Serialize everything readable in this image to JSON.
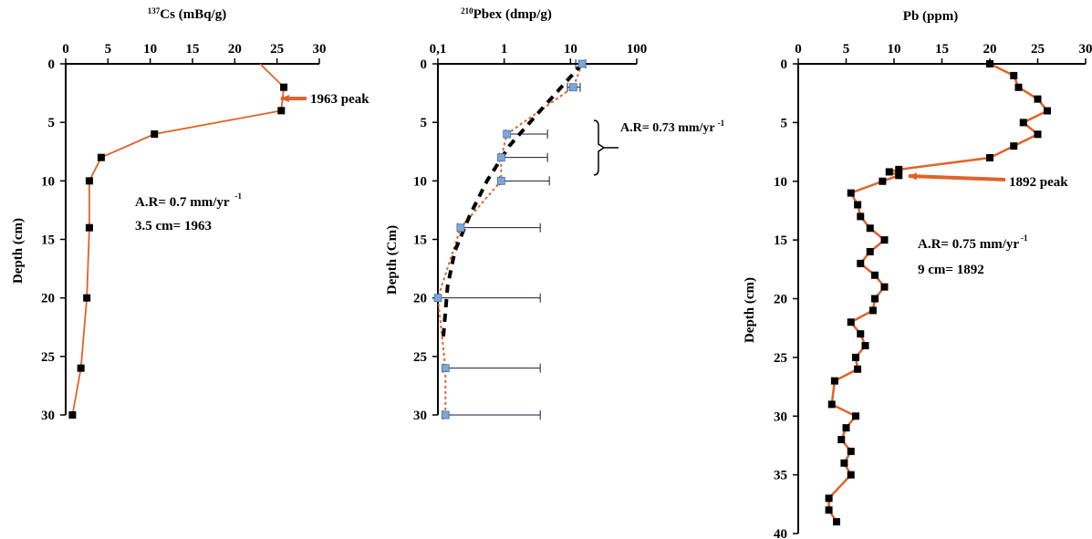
{
  "chart_data": [
    {
      "type": "line",
      "title_sup": "137",
      "title_main": "Cs (mBq/g)",
      "ylabel": "Depth (cm)",
      "xlim": [
        0,
        30
      ],
      "ylim": [
        0,
        30
      ],
      "x_ticks": [
        "0",
        "5",
        "10",
        "15",
        "20",
        "25",
        "30"
      ],
      "y_ticks": [
        "0",
        "5",
        "10",
        "15",
        "20",
        "25",
        "30"
      ],
      "x_tick_values": [
        0,
        5,
        10,
        15,
        20,
        25,
        30
      ],
      "y_tick_values": [
        0,
        5,
        10,
        15,
        20,
        25,
        30
      ],
      "line_color": "#e0632a",
      "marker_color": "#000000",
      "series": [
        {
          "x": [
            23,
            25.8,
            25.5,
            10.5,
            4.2,
            2.8,
            2.8,
            2.5,
            1.8,
            0.8
          ],
          "y": [
            0,
            2,
            4,
            6,
            8,
            10,
            14,
            20,
            26,
            30
          ],
          "markers": [
            false,
            true,
            true,
            true,
            true,
            true,
            true,
            true,
            true,
            true
          ]
        }
      ],
      "peak_label": "1963 peak",
      "peak_point": {
        "x": 25.5,
        "y": 3
      },
      "ar_text": "A.R= 0.7 mm/yr",
      "ar_sup": "-1",
      "date_text": "3.5 cm= 1963"
    },
    {
      "type": "line",
      "title_sup": "210",
      "title_main": "Pbex (dmp/g)",
      "ylabel": "Depth (Cm)",
      "x_scale": "log",
      "xlim": [
        0.1,
        100
      ],
      "ylim": [
        0,
        30
      ],
      "x_ticks": [
        "0,1",
        "1",
        "10",
        "100"
      ],
      "x_tick_values": [
        0.1,
        1,
        10,
        100
      ],
      "y_ticks": [
        "0",
        "5",
        "10",
        "15",
        "20",
        "25",
        "30"
      ],
      "y_tick_values": [
        0,
        5,
        10,
        15,
        20,
        25,
        30
      ],
      "line_color": "#e0632a",
      "marker_color": "#7ba7d9",
      "fit_color": "#000000",
      "series": [
        {
          "name": "",
          "x": [
            15,
            11,
            1.1,
            0.9,
            0.9,
            0.22,
            0.1,
            0.13,
            0.13
          ],
          "y": [
            0,
            2,
            6,
            8,
            10,
            14,
            20,
            26,
            30
          ],
          "err_low": [
            12,
            9,
            1.05,
            0.85,
            0.85,
            0.2,
            0.1,
            0.12,
            0.12
          ],
          "err_high": [
            17,
            14,
            4.5,
            4.5,
            4.8,
            3.5,
            3.5,
            3.5,
            3.5
          ]
        }
      ],
      "fit_line": {
        "x": [
          15,
          3.5,
          1.2,
          0.55,
          0.3,
          0.18,
          0.14,
          0.12
        ],
        "y": [
          0,
          4,
          7,
          10,
          13,
          16,
          19,
          23.5
        ]
      },
      "bracket_y": [
        0,
        9.5
      ],
      "ar_text": "A.R= 0.73 mm/yr",
      "ar_sup": "-1"
    },
    {
      "type": "line",
      "title_main": "Pb (ppm)",
      "ylabel": "Depth (cm)",
      "xlim": [
        0,
        30
      ],
      "ylim": [
        0,
        40
      ],
      "x_ticks": [
        "0",
        "5",
        "10",
        "15",
        "20",
        "25",
        "30"
      ],
      "y_ticks": [
        "0",
        "5",
        "10",
        "15",
        "20",
        "25",
        "30",
        "35",
        "40"
      ],
      "x_tick_values": [
        0,
        5,
        10,
        15,
        20,
        25,
        30
      ],
      "y_tick_values": [
        0,
        5,
        10,
        15,
        20,
        25,
        30,
        35,
        40
      ],
      "line_color": "#e0632a",
      "marker_color": "#000000",
      "series": [
        {
          "x": [
            20,
            22.5,
            23,
            25,
            26,
            23.5,
            25,
            22.5,
            20,
            10.5,
            9.5,
            10.5,
            8.8,
            5.5,
            6.2,
            6.5,
            7.5,
            9,
            7.5,
            6.5,
            8,
            9,
            8,
            7.8,
            5.5,
            6.5,
            7,
            6,
            6.2,
            3.8,
            3.5,
            6,
            5,
            4.5,
            5.5,
            4.8,
            5.5,
            3.2,
            3.2,
            4
          ],
          "y": [
            0,
            1,
            2,
            3,
            4,
            5,
            6,
            7,
            8,
            9,
            9.2,
            9.5,
            10,
            11,
            12,
            13,
            14,
            15,
            16,
            17,
            18,
            19,
            20,
            21,
            22,
            23,
            24,
            25,
            26,
            27,
            29,
            30,
            31,
            32,
            33,
            34,
            35,
            37,
            38,
            39
          ]
        }
      ],
      "peak_label": "1892 peak",
      "peak_point": {
        "x": 10.5,
        "y": 9.5
      },
      "ar_text": "A.R= 0.75 mm/yr",
      "ar_sup": "-1",
      "date_text": "9 cm= 1892"
    }
  ]
}
